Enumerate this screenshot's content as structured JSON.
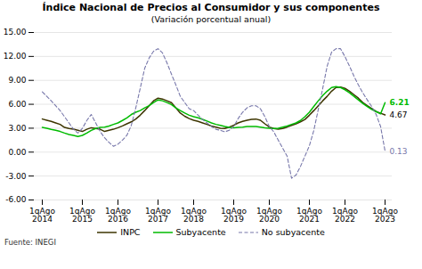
{
  "chart_data": {
    "type": "line",
    "title": "Índice Nacional de Precios al Consumidor y sus componentes",
    "subtitle": "(Variación porcentual anual)",
    "caption": "Fuente: INEGI",
    "categories": [
      "1qAgo\n2014",
      null,
      null,
      null,
      null,
      null,
      null,
      null,
      null,
      "1qAgo\n2015",
      null,
      null,
      null,
      null,
      null,
      null,
      null,
      "1qAgo\n2016",
      null,
      null,
      null,
      null,
      null,
      null,
      null,
      null,
      "1qAgo\n2017",
      null,
      null,
      null,
      null,
      null,
      null,
      null,
      "1qAgo\n2018",
      null,
      null,
      null,
      null,
      null,
      null,
      null,
      null,
      "1qAgo\n2019",
      null,
      null,
      null,
      null,
      null,
      null,
      null,
      "1qAgo\n2020",
      null,
      null,
      null,
      null,
      null,
      null,
      null,
      null,
      "1qAgo\n2021",
      null,
      null,
      null,
      null,
      null,
      null,
      null,
      "1qAgo\n2022",
      null,
      null,
      null,
      null,
      null,
      null,
      null,
      null,
      "1qAgo\n2023"
    ],
    "series": [
      {
        "name": "INPC",
        "color": "#3d3500",
        "line_style": "solid",
        "values": [
          4.15,
          4.0,
          3.85,
          3.66,
          3.48,
          3.1,
          2.97,
          2.87,
          2.73,
          2.59,
          2.87,
          3.06,
          2.97,
          2.87,
          2.59,
          2.73,
          2.87,
          3.06,
          3.28,
          3.55,
          3.8,
          4.15,
          4.63,
          5.21,
          5.82,
          6.44,
          6.77,
          6.66,
          6.44,
          6.2,
          5.55,
          4.9,
          4.5,
          4.21,
          4.0,
          3.85,
          3.66,
          3.48,
          3.28,
          3.14,
          3.0,
          2.97,
          3.14,
          3.36,
          3.66,
          3.85,
          4.0,
          4.1,
          4.15,
          4.0,
          3.55,
          3.14,
          2.97,
          2.87,
          2.97,
          3.14,
          3.36,
          3.55,
          3.8,
          4.1,
          4.63,
          5.21,
          5.82,
          6.44,
          7.0,
          7.65,
          8.1,
          8.15,
          7.99,
          7.65,
          7.21,
          6.77,
          6.22,
          5.82,
          5.46,
          5.09,
          4.88,
          4.67
        ]
      },
      {
        "name": "Subyacente",
        "color": "#00bb00",
        "line_style": "solid",
        "values": [
          3.1,
          3.0,
          2.85,
          2.73,
          2.59,
          2.39,
          2.21,
          2.1,
          1.97,
          2.1,
          2.39,
          2.73,
          2.97,
          3.1,
          3.14,
          3.28,
          3.48,
          3.66,
          3.97,
          4.3,
          4.72,
          5.0,
          5.21,
          5.55,
          5.82,
          6.22,
          6.55,
          6.44,
          6.22,
          5.97,
          5.55,
          5.21,
          4.9,
          4.63,
          4.44,
          4.3,
          4.1,
          3.9,
          3.66,
          3.48,
          3.36,
          3.21,
          3.1,
          3.06,
          3.1,
          3.14,
          3.21,
          3.21,
          3.21,
          3.14,
          3.06,
          3.0,
          2.97,
          3.0,
          3.14,
          3.28,
          3.48,
          3.66,
          3.97,
          4.44,
          5.0,
          5.72,
          6.44,
          7.1,
          7.65,
          8.1,
          8.21,
          8.1,
          7.82,
          7.44,
          7.0,
          6.55,
          6.1,
          5.72,
          5.35,
          5.09,
          4.8,
          6.21
        ]
      },
      {
        "name": "No subyacente",
        "color": "#7777aa",
        "line_style": "dashed",
        "values": [
          7.55,
          7.0,
          6.44,
          5.82,
          5.21,
          4.44,
          3.66,
          2.87,
          2.39,
          2.97,
          3.97,
          4.72,
          3.66,
          2.59,
          1.8,
          1.21,
          0.73,
          1.0,
          1.5,
          2.1,
          3.36,
          5.55,
          8.0,
          10.5,
          11.8,
          12.65,
          12.97,
          12.44,
          11.21,
          9.8,
          8.44,
          7.0,
          6.22,
          5.44,
          5.21,
          4.63,
          4.1,
          3.66,
          3.21,
          2.87,
          2.73,
          2.55,
          2.73,
          3.21,
          4.21,
          5.0,
          5.55,
          5.82,
          5.82,
          5.44,
          4.44,
          3.21,
          2.55,
          1.5,
          0.5,
          -0.5,
          -3.28,
          -2.87,
          -1.8,
          -0.5,
          0.8,
          2.73,
          5.35,
          8.0,
          10.8,
          12.55,
          12.97,
          12.97,
          11.97,
          10.8,
          9.55,
          8.44,
          7.44,
          6.55,
          5.72,
          4.72,
          3.21,
          0.13
        ]
      }
    ],
    "annotations": [
      {
        "series": "Subyacente",
        "text": "6.21"
      },
      {
        "series": "INPC",
        "text": "4.67"
      },
      {
        "series": "No subyacente",
        "text": "0.13"
      }
    ],
    "ylim": [
      -6.0,
      15.0
    ],
    "yticks": [
      {
        "value": -6.0,
        "label": "-6.00"
      },
      {
        "value": -3.0,
        "label": "-3.00"
      },
      {
        "value": 0.0,
        "label": "0.00"
      },
      {
        "value": 3.0,
        "label": "3.00"
      },
      {
        "value": 6.0,
        "label": "6.00"
      },
      {
        "value": 9.0,
        "label": "9.00"
      },
      {
        "value": 12.0,
        "label": "12.00"
      },
      {
        "value": 15.0,
        "label": "15.00"
      }
    ],
    "grid": true,
    "legend": "bottom"
  }
}
